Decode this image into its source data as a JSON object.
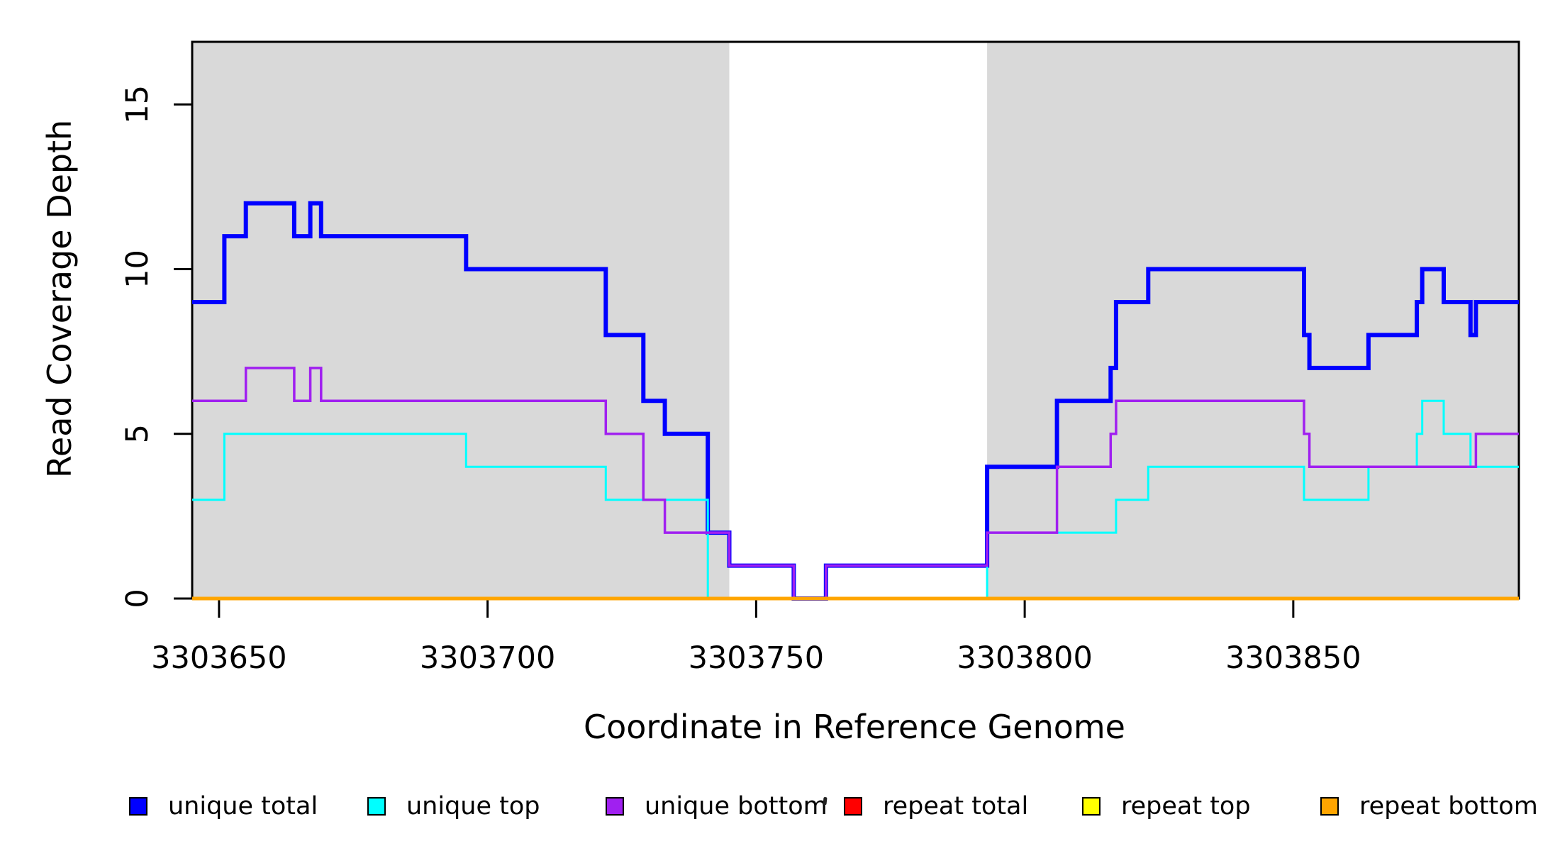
{
  "chart_data": {
    "type": "line",
    "subtype": "step-after",
    "title": "",
    "xlabel": "Coordinate in Reference Genome",
    "ylabel": "Read Coverage Depth",
    "xlim": [
      3303645,
      3303892
    ],
    "ylim": [
      0,
      16.9
    ],
    "x_ticks": [
      3303650,
      3303700,
      3303750,
      3303800,
      3303850
    ],
    "y_ticks": [
      0,
      5,
      10,
      15
    ],
    "grid": false,
    "legend_position": "bottom",
    "plot_background": "#FFFFFF",
    "shaded_regions": [
      {
        "x_from": 3303645,
        "x_to": 3303745,
        "color": "#D9D9D9"
      },
      {
        "x_from": 3303793,
        "x_to": 3303892,
        "color": "#D9D9D9"
      }
    ],
    "series": [
      {
        "name": "unique total",
        "color": "#0000FF",
        "line_width": 6,
        "points": [
          [
            3303645,
            9
          ],
          [
            3303651,
            11
          ],
          [
            3303655,
            12
          ],
          [
            3303664,
            11
          ],
          [
            3303667,
            12
          ],
          [
            3303669,
            11
          ],
          [
            3303696,
            10
          ],
          [
            3303722,
            8
          ],
          [
            3303729,
            6
          ],
          [
            3303733,
            5
          ],
          [
            3303741,
            2
          ],
          [
            3303745,
            1
          ],
          [
            3303757,
            0
          ],
          [
            3303763,
            1
          ],
          [
            3303793,
            4
          ],
          [
            3303806,
            6
          ],
          [
            3303816,
            7
          ],
          [
            3303817,
            9
          ],
          [
            3303823,
            10
          ],
          [
            3303852,
            8
          ],
          [
            3303853,
            7
          ],
          [
            3303864,
            8
          ],
          [
            3303873,
            9
          ],
          [
            3303874,
            10
          ],
          [
            3303878,
            9
          ],
          [
            3303883,
            8
          ],
          [
            3303884,
            9
          ]
        ]
      },
      {
        "name": "unique top",
        "color": "#00FFFF",
        "line_width": 3,
        "points": [
          [
            3303645,
            3
          ],
          [
            3303651,
            5
          ],
          [
            3303696,
            4
          ],
          [
            3303722,
            3
          ],
          [
            3303741,
            0
          ],
          [
            3303793,
            2
          ],
          [
            3303817,
            3
          ],
          [
            3303823,
            4
          ],
          [
            3303852,
            3
          ],
          [
            3303864,
            4
          ],
          [
            3303873,
            5
          ],
          [
            3303874,
            6
          ],
          [
            3303878,
            5
          ],
          [
            3303883,
            4
          ]
        ]
      },
      {
        "name": "unique bottom",
        "color": "#A020F0",
        "line_width": 3.5,
        "points": [
          [
            3303645,
            6
          ],
          [
            3303655,
            7
          ],
          [
            3303664,
            6
          ],
          [
            3303667,
            7
          ],
          [
            3303669,
            6
          ],
          [
            3303722,
            5
          ],
          [
            3303729,
            3
          ],
          [
            3303733,
            2
          ],
          [
            3303745,
            1
          ],
          [
            3303757,
            0
          ],
          [
            3303763,
            1
          ],
          [
            3303793,
            2
          ],
          [
            3303806,
            4
          ],
          [
            3303816,
            5
          ],
          [
            3303817,
            6
          ],
          [
            3303852,
            5
          ],
          [
            3303853,
            4
          ],
          [
            3303884,
            5
          ]
        ]
      },
      {
        "name": "repeat total",
        "color": "#FF0000",
        "line_width": 3,
        "points": [
          [
            3303645,
            0
          ]
        ]
      },
      {
        "name": "repeat top",
        "color": "#FFFF00",
        "line_width": 3,
        "points": [
          [
            3303645,
            0
          ]
        ]
      },
      {
        "name": "repeat bottom",
        "color": "#FFA500",
        "line_width": 5,
        "points": [
          [
            3303645,
            0
          ]
        ]
      }
    ]
  },
  "legend": {
    "items": [
      {
        "label": "unique total",
        "color": "#0000FF"
      },
      {
        "label": "unique top",
        "color": "#00FFFF"
      },
      {
        "label": "unique bottom",
        "color": "#A020F0"
      },
      {
        "label": "repeat total",
        "color": "#FF0000"
      },
      {
        "label": "repeat top",
        "color": "#FFFF00"
      },
      {
        "label": "repeat bottom",
        "color": "#FFA500"
      }
    ]
  }
}
